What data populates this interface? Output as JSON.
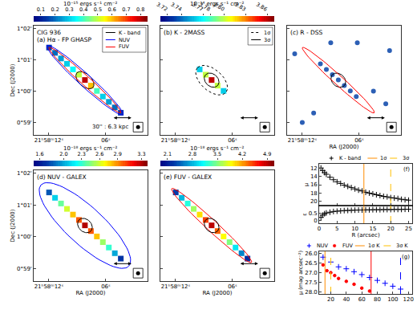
{
  "title": "CIG 936",
  "chart_data": [
    {
      "type": "image",
      "title": "(a) Hα - FP GHASP",
      "marker": "square",
      "xlim": [
        13.6,
        1.6
      ],
      "xticks": [
        {
          "value": 12,
          "label": "21ʰ58ᵐ12ˢ"
        },
        {
          "value": 6,
          "label": "06ˢ"
        }
      ],
      "ylim": [
        58.6,
        62.1
      ],
      "yticks": [
        {
          "value": 59,
          "label": "0°59'"
        },
        {
          "value": 60,
          "label": "1°00'"
        },
        {
          "value": 61,
          "label": "1°01'"
        },
        {
          "value": 62,
          "label": "1°02'"
        }
      ],
      "y_label": "Dec (J2000)",
      "tick_labels": true,
      "image": {
        "x": [
          11.98,
          11.35,
          10.72,
          10.09,
          9.46,
          8.83,
          8.2,
          7.57,
          6.94,
          6.31,
          5.68,
          5.05,
          4.42
        ],
        "y": [
          61.4,
          61.23,
          61.05,
          60.88,
          60.7,
          60.53,
          60.36,
          60.18,
          60.01,
          59.83,
          59.66,
          59.48,
          59.31
        ],
        "values": [
          0.15,
          0.2,
          0.25,
          0.3,
          0.35,
          0.5,
          0.8,
          0.6,
          0.4,
          0.3,
          0.25,
          0.2,
          0.15
        ]
      },
      "colorbar": {
        "range": [
          0.05,
          0.85
        ],
        "ticks": [
          0.1,
          0.2,
          0.3,
          0.4,
          0.5,
          0.6,
          0.7,
          0.8
        ],
        "title": "10⁻¹⁵ ergs s⁻¹ cm⁻²"
      },
      "contours": [
        {
          "name": "K - band",
          "color": "black",
          "line_style": "solid",
          "major": [
            [
              9.04,
              60.59
            ],
            [
              7.36,
              60.12
            ]
          ],
          "minor": [
            7.75,
            60.5
          ]
        },
        {
          "name": "NUV",
          "color": "blue",
          "line_style": "solid",
          "major": [
            [
              12.19,
              61.46
            ],
            [
              4.21,
              59.25
            ]
          ],
          "minor": [
            7.75,
            60.5
          ]
        },
        {
          "name": "FUV",
          "color": "red",
          "line_style": "solid",
          "major": [
            [
              11.98,
              61.4
            ],
            [
              4.42,
              59.31
            ]
          ],
          "minor": [
            7.85,
            60.46
          ]
        }
      ],
      "legend": "upper right",
      "scale_bar": {
        "x": [
          5.3,
          3.3
        ],
        "y": 59.15,
        "label": "30'' : 6.3 kpc"
      },
      "beam": [
        2.6,
        58.85
      ]
    },
    {
      "type": "image",
      "title": "(b) K - 2MASS",
      "marker": "square",
      "xlim": [
        13.6,
        1.6
      ],
      "xticks": [
        {
          "value": 12,
          "label": "21ʰ58ᵐ12ˢ"
        },
        {
          "value": 6,
          "label": "06ˢ"
        }
      ],
      "ylim": [
        58.6,
        62.1
      ],
      "yticks": [
        {
          "value": 59,
          "label": "0°59'"
        },
        {
          "value": 60,
          "label": "1°00'"
        },
        {
          "value": 61,
          "label": "1°01'"
        },
        {
          "value": 62,
          "label": "1°02'"
        }
      ],
      "tick_labels": "x",
      "image": {
        "x": [
          9.46,
          8.83,
          8.2,
          7.57,
          6.94
        ],
        "y": [
          60.7,
          60.53,
          60.36,
          60.18,
          60.01
        ],
        "values": [
          3.76,
          3.8,
          3.86,
          3.8,
          3.76
        ]
      },
      "colorbar": {
        "range": [
          3.71,
          3.87
        ],
        "ticks": [
          3.72,
          3.74,
          3.77,
          3.78,
          {
            "value": 3.8,
            "label": "3.80"
          },
          3.83,
          3.86
        ],
        "title": "10⁻¹⁴ ergs s⁻¹ cm⁻²"
      },
      "contours": [
        {
          "name": "1σ",
          "color": "black",
          "line_style": "dotted",
          "major": [
            [
              9.67,
              60.76
            ],
            [
              6.73,
              59.95
            ]
          ],
          "minor": [
            7.4,
            60.6
          ]
        },
        {
          "name": "3σ",
          "color": "black",
          "line_style": "solid",
          "major": [
            [
              8.83,
              60.53
            ],
            [
              7.57,
              60.18
            ]
          ],
          "minor": [
            7.75,
            60.5
          ]
        }
      ],
      "legend": "upper right",
      "scale_bar": {
        "x": [
          5.3,
          3.3
        ],
        "y": 59.15
      },
      "beam": [
        2.6,
        58.85
      ]
    },
    {
      "type": "image",
      "title": "(c) R - DSS",
      "marker": "circle",
      "color": "#2c5fb5",
      "xlim": [
        13.6,
        1.6
      ],
      "xticks": [
        {
          "value": 12,
          "label": "21ʰ58ᵐ12ˢ"
        },
        {
          "value": 6,
          "label": "06ˢ"
        }
      ],
      "ylim": [
        58.6,
        62.1
      ],
      "yticks": [
        {
          "value": 59,
          "label": "0°59'"
        },
        {
          "value": 60,
          "label": "1°00'"
        },
        {
          "value": 61,
          "label": "1°01'"
        },
        {
          "value": 62,
          "label": "1°02'"
        }
      ],
      "x_label": "RA (J2000)",
      "tick_labels": "x",
      "image": {
        "x": [
          10.09,
          9.46,
          8.83,
          8.2,
          7.57,
          6.94,
          6.31,
          9.0,
          6.2,
          2.8,
          12.8,
          4.5,
          10.8,
          3.2,
          12.0
        ],
        "y": [
          60.88,
          60.7,
          60.53,
          60.36,
          60.18,
          60.01,
          59.83,
          61.55,
          61.55,
          61.3,
          61.2,
          60.0,
          59.3,
          59.6,
          59.0
        ]
      },
      "contours": [
        {
          "color": "black",
          "line_style": "solid",
          "major": [
            [
              8.83,
              60.53
            ],
            [
              7.57,
              60.18
            ]
          ],
          "minor": [
            7.75,
            60.5
          ]
        },
        {
          "color": "red",
          "line_style": "solid",
          "major": [
            [
              11.98,
              61.4
            ],
            [
              4.42,
              59.31
            ]
          ],
          "minor": [
            7.85,
            60.46
          ]
        }
      ],
      "scale_bar": {
        "x": [
          5.3,
          3.3
        ],
        "y": 59.15
      },
      "beam": [
        2.6,
        58.85
      ]
    },
    {
      "type": "image",
      "title": "(d) NUV - GALEX",
      "marker": "square",
      "xlim": [
        13.6,
        1.6
      ],
      "xticks": [
        {
          "value": 12,
          "label": "21ʰ58ᵐ12ˢ"
        },
        {
          "value": 6,
          "label": "06ˢ"
        }
      ],
      "ylim": [
        58.6,
        62.1
      ],
      "yticks": [
        {
          "value": 59,
          "label": "0°59'"
        },
        {
          "value": 60,
          "label": "1°00'"
        },
        {
          "value": 61,
          "label": "1°01'"
        },
        {
          "value": 62,
          "label": "1°02'"
        }
      ],
      "x_label": "RA (J2000)",
      "y_label": "Dec (J2000)",
      "tick_labels": true,
      "image": {
        "x": [
          11.98,
          11.35,
          10.72,
          10.09,
          9.46,
          8.83,
          8.2,
          7.57,
          6.94,
          6.31,
          5.68,
          5.05,
          4.42
        ],
        "y": [
          61.4,
          61.23,
          61.05,
          60.88,
          60.7,
          60.53,
          60.36,
          60.18,
          60.01,
          59.83,
          59.66,
          59.48,
          59.31
        ],
        "values": [
          1.8,
          2.1,
          2.4,
          2.6,
          2.8,
          3.0,
          3.3,
          3.0,
          2.8,
          2.5,
          2.3,
          2.0,
          1.7
        ]
      },
      "colorbar": {
        "range": [
          1.5,
          3.4
        ],
        "ticks": [
          1.6,
          {
            "value": 2,
            "label": "2.0"
          },
          2.3,
          2.6,
          2.9,
          3.3
        ],
        "title": "10⁻¹⁸ ergs s⁻¹ cm⁻²"
      },
      "contours": [
        {
          "color": "blue",
          "line_style": "solid",
          "major": [
            [
              12.82,
              61.64
            ],
            [
              3.58,
              59.07
            ]
          ],
          "minor": [
            6.83,
            60.78
          ]
        },
        {
          "color": "black",
          "line_style": "solid",
          "major": [
            [
              8.83,
              60.53
            ],
            [
              7.57,
              60.18
            ]
          ],
          "minor": [
            7.75,
            60.5
          ]
        }
      ],
      "scale_bar": {
        "x": [
          5.3,
          3.3
        ],
        "y": 59.15
      },
      "beam": [
        2.6,
        58.85
      ]
    },
    {
      "type": "image",
      "title": "(e) FUV - GALEX",
      "marker": "square",
      "xlim": [
        13.6,
        1.6
      ],
      "xticks": [
        {
          "value": 12,
          "label": "21ʰ58ᵐ12ˢ"
        },
        {
          "value": 6,
          "label": "06ˢ"
        }
      ],
      "ylim": [
        58.6,
        62.1
      ],
      "yticks": [
        {
          "value": 59,
          "label": "0°59'"
        },
        {
          "value": 60,
          "label": "1°00'"
        },
        {
          "value": 61,
          "label": "1°01'"
        },
        {
          "value": 62,
          "label": "1°02'"
        }
      ],
      "x_label": "RA (J2000)",
      "tick_labels": "x",
      "image": {
        "x": [
          11.98,
          11.35,
          10.72,
          10.09,
          9.46,
          8.83,
          8.2,
          7.57,
          6.94,
          6.31,
          5.68,
          5.05,
          4.42
        ],
        "y": [
          61.4,
          61.23,
          61.05,
          60.88,
          60.7,
          60.53,
          60.36,
          60.18,
          60.01,
          59.83,
          59.66,
          59.48,
          59.31
        ],
        "values": [
          2.3,
          2.8,
          3.2,
          3.6,
          4.0,
          4.5,
          4.9,
          4.4,
          3.9,
          3.5,
          3.0,
          2.6,
          2.2
        ]
      },
      "colorbar": {
        "range": [
          1.9,
          5.1
        ],
        "ticks": [
          2.1,
          2.8,
          3.5,
          4.2,
          4.9
        ],
        "title": "10⁻¹⁸ ergs s⁻¹ cm⁻²"
      },
      "contours": [
        {
          "color": "red",
          "line_style": "solid",
          "major": [
            [
              12.4,
              61.52
            ],
            [
              4.0,
              59.19
            ]
          ],
          "minor": [
            7.8,
            60.48
          ]
        },
        {
          "color": "black",
          "line_style": "solid",
          "major": [
            [
              8.83,
              60.53
            ],
            [
              7.57,
              60.18
            ]
          ],
          "minor": [
            7.75,
            60.5
          ]
        }
      ],
      "scale_bar": {
        "x": [
          5.3,
          3.3
        ],
        "y": 59.15
      },
      "beam": [
        2.6,
        58.85
      ]
    },
    {
      "type": "scatter",
      "title": "(f)",
      "xlim": [
        0,
        26
      ],
      "xticks": [
        0,
        5,
        10,
        15,
        20,
        25
      ],
      "ylim": [
        21,
        11
      ],
      "yticks": [
        12,
        14,
        16,
        18,
        20
      ],
      "y_label": "μ",
      "tick_labels": "y",
      "series": [
        {
          "name": "K - band",
          "color": "black",
          "marker": "plus",
          "x": [
            0.5,
            1,
            1.5,
            2,
            3,
            4,
            5,
            6,
            7,
            8,
            9,
            10,
            11,
            12,
            13,
            14,
            15,
            16,
            17,
            18,
            19,
            20,
            21,
            22,
            23,
            24,
            25
          ],
          "values": [
            12.0,
            12.6,
            13.1,
            13.5,
            14.2,
            14.8,
            15.3,
            15.7,
            16.1,
            16.4,
            16.7,
            17.0,
            17.3,
            17.5,
            17.8,
            18.0,
            18.2,
            18.4,
            18.6,
            18.8,
            18.9,
            19.1,
            19.2,
            19.3,
            19.5,
            19.6,
            19.7
          ]
        }
      ],
      "vlines": [
        {
          "name": "1σ",
          "x": 12.5,
          "color": "#ff8c00",
          "line_style": "solid"
        },
        {
          "name": "3σ",
          "x": 20,
          "color": "#ffc000",
          "line_style": "dashed"
        }
      ],
      "legend": "top"
    },
    {
      "type": "scatter",
      "xlim": [
        0,
        26
      ],
      "xticks": [
        0,
        5,
        10,
        15,
        20,
        25
      ],
      "ylim": [
        -0.2,
        1
      ],
      "yticks": [
        0,
        0.5
      ],
      "x_label": "R (arcsec)",
      "y_label": "ε",
      "tick_labels": true,
      "series": [
        {
          "color": "black",
          "marker": "plus",
          "x": [
            0.5,
            1,
            1.5,
            2,
            3,
            4,
            5,
            6,
            7,
            8,
            9,
            10,
            11,
            12,
            13,
            14,
            15,
            16,
            17,
            18,
            19,
            20,
            21,
            22,
            23,
            24,
            25
          ],
          "values": [
            0.2,
            0.35,
            0.45,
            0.5,
            0.55,
            0.6,
            0.62,
            0.64,
            0.66,
            0.67,
            0.68,
            0.69,
            0.7,
            0.7,
            0.71,
            0.71,
            0.72,
            0.72,
            0.72,
            0.73,
            0.73,
            0.73,
            0.74,
            0.74,
            0.74,
            0.75,
            0.75
          ]
        }
      ],
      "vlines": [
        {
          "x": 12.5,
          "color": "#ff8c00",
          "line_style": "solid"
        },
        {
          "x": 20,
          "color": "#ffc000",
          "line_style": "dashed"
        }
      ]
    },
    {
      "type": "scatter",
      "title": "(g)",
      "xlim": [
        5,
        125
      ],
      "xticks": [
        20,
        40,
        60,
        80,
        100,
        120
      ],
      "ylim": [
        28.1,
        25.9
      ],
      "yticks": [
        {
          "value": 26,
          "label": "26.0"
        },
        26.5,
        {
          "value": 27,
          "label": "27.0"
        },
        27.5,
        {
          "value": 28,
          "label": "28.0"
        }
      ],
      "y_label": "μ (mag arcsec⁻²)",
      "tick_labels": true,
      "series": [
        {
          "name": "NUV",
          "color": "blue",
          "marker": "plus",
          "x": [
            10,
            20,
            30,
            40,
            50,
            60,
            70,
            80,
            90,
            100,
            110
          ],
          "values": [
            26.2,
            26.45,
            26.7,
            26.8,
            26.95,
            27.1,
            27.25,
            27.4,
            27.55,
            27.7,
            27.85
          ]
        },
        {
          "name": "FUV",
          "color": "red",
          "marker": "circle",
          "x": [
            10,
            15,
            20,
            25,
            30,
            40,
            50,
            60,
            70
          ],
          "values": [
            26.6,
            26.9,
            27.0,
            27.15,
            27.3,
            27.45,
            27.6,
            27.8,
            27.95
          ]
        }
      ],
      "vlines": [
        {
          "name": "1σ K",
          "x": 12.5,
          "color": "#ff8c00",
          "line_style": "solid"
        },
        {
          "name": "3σ K",
          "x": 20,
          "color": "#ffc000",
          "line_style": "dashed"
        },
        {
          "x": 72,
          "color": "red",
          "line_style": "solid"
        },
        {
          "x": 110,
          "color": "blue",
          "line_style": "dashed"
        }
      ],
      "legend": "top"
    }
  ]
}
